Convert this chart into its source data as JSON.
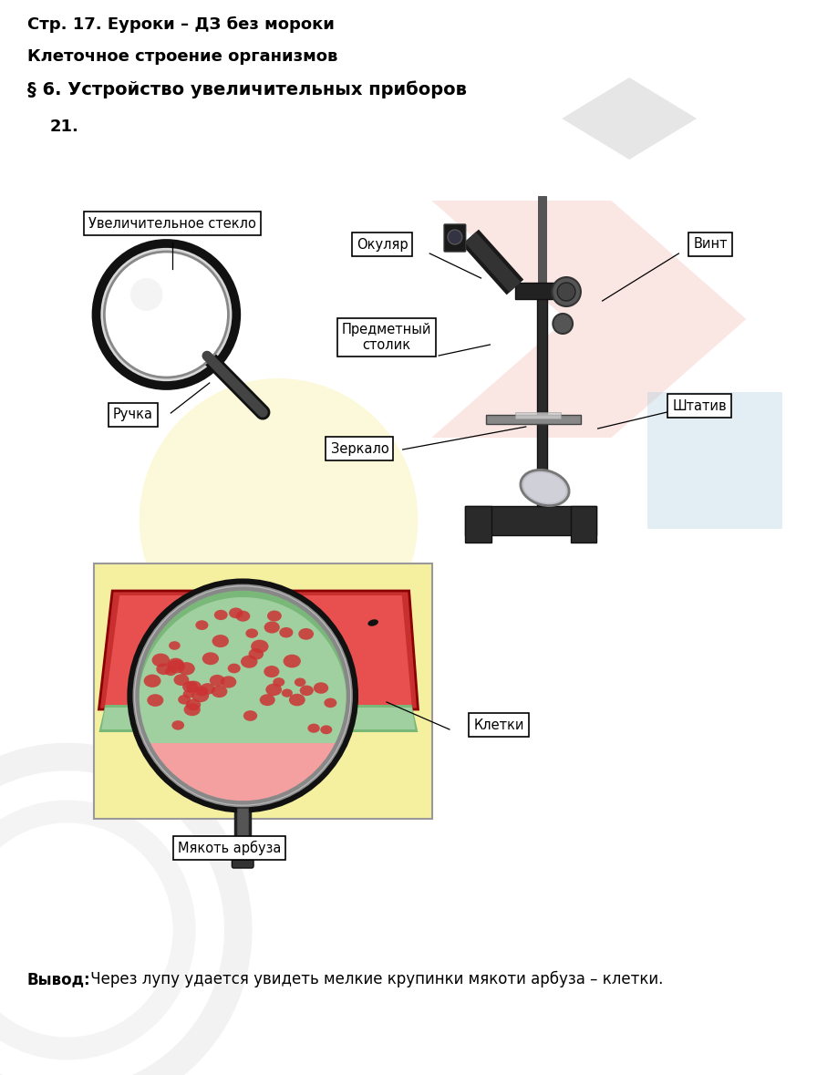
{
  "title1": "Стр. 17. Еуроки – ДЗ без мороки",
  "title2": "Клеточное строение организмов",
  "title3": "§ 6. Устройство увеличительных приборов",
  "number": "21.",
  "bg_color": "#ffffff",
  "labels": {
    "uvelich": "Увеличительное стекло",
    "okulyar": "Окуляр",
    "vint": "Винт",
    "predm": "Предметный\nстолик",
    "ruchka": "Ручка",
    "shtativ": "Штатив",
    "zerkalo": "Зеркало",
    "kletki": "Клетки",
    "myakot": "Мякоть арбуза"
  },
  "vyvod_bold": "Вывод:",
  "vyvod_normal": " Через лупу удается увидеть мелкие крупинки мякоти арбуза – клетки.",
  "font_size_title": 13,
  "font_size_label": 11,
  "font_size_number": 13
}
